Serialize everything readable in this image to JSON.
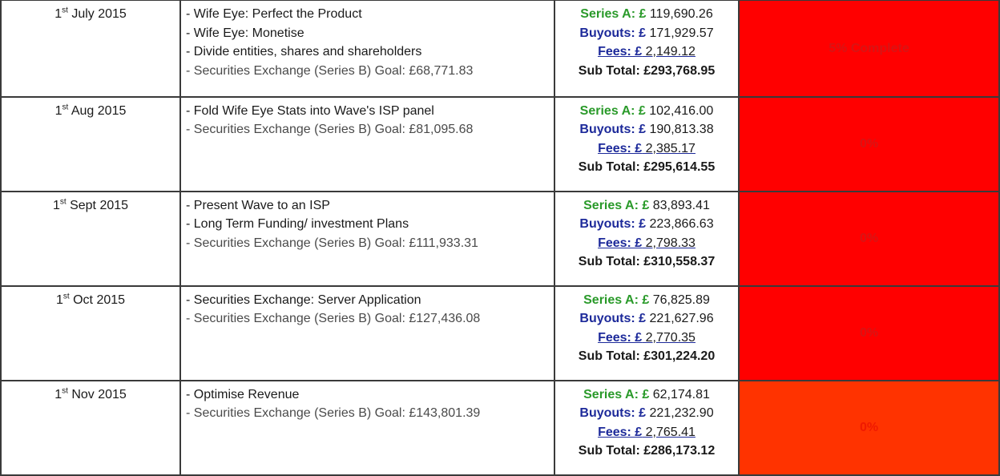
{
  "rows": [
    {
      "date_num": "1",
      "date_sup": "st",
      "date_rest": " July 2015",
      "tasks": [
        "- Wife Eye: Perfect the Product",
        "- Wife Eye: Monetise",
        "- Divide entities, shares and shareholders",
        "- Securities Exchange (Series B) Goal: £68,771.83"
      ],
      "series_label": "Series A: £",
      "series_value": " 119,690.26",
      "buyouts_label": "Buyouts: £",
      "buyouts_value": " 171,929.57",
      "fees_label": "Fees: £",
      "fees_value": " 2,149.12",
      "sub_label": "Sub Total: ",
      "sub_value": "£293,768.95",
      "status": "5% Complete",
      "status_color": "#ff0000"
    },
    {
      "date_num": "1",
      "date_sup": "st",
      "date_rest": " Aug 2015",
      "tasks": [
        "- Fold Wife Eye Stats into Wave's ISP panel",
        "- Securities Exchange (Series B) Goal: £81,095.68"
      ],
      "series_label": "Series A: £",
      "series_value": " 102,416.00",
      "buyouts_label": "Buyouts: £",
      "buyouts_value": " 190,813.38",
      "fees_label": "Fees: £",
      "fees_value": " 2,385.17",
      "sub_label": "Sub Total: ",
      "sub_value": "£295,614.55",
      "status": "0%",
      "status_color": "#ff0000"
    },
    {
      "date_num": "1",
      "date_sup": "st",
      "date_rest": " Sept 2015",
      "tasks": [
        "- Present Wave to an ISP",
        "- Long Term Funding/ investment Plans",
        "- Securities Exchange (Series B) Goal: £111,933.31"
      ],
      "series_label": "Series A: £",
      "series_value": " 83,893.41",
      "buyouts_label": "Buyouts: £",
      "buyouts_value": " 223,866.63",
      "fees_label": "Fees: £",
      "fees_value": " 2,798.33",
      "sub_label": "Sub Total: ",
      "sub_value": "£310,558.37",
      "status": "0%",
      "status_color": "#ff0000"
    },
    {
      "date_num": "1",
      "date_sup": "st",
      "date_rest": " Oct 2015",
      "tasks": [
        "- Securities Exchange: Server Application",
        "- Securities Exchange (Series B) Goal: £127,436.08"
      ],
      "series_label": "Series A: £",
      "series_value": " 76,825.89",
      "buyouts_label": "Buyouts: £",
      "buyouts_value": " 221,627.96",
      "fees_label": "Fees: £",
      "fees_value": " 2,770.35",
      "sub_label": "Sub Total: ",
      "sub_value": "£301,224.20",
      "status": "0%",
      "status_color": "#ff0000"
    },
    {
      "date_num": "1",
      "date_sup": "st",
      "date_rest": " Nov 2015",
      "tasks": [
        "- Optimise Revenue",
        "- Securities Exchange (Series B) Goal: £143,801.39"
      ],
      "series_label": "Series A: £",
      "series_value": " 62,174.81",
      "buyouts_label": "Buyouts: £",
      "buyouts_value": " 221,232.90",
      "fees_label": "Fees: £",
      "fees_value": " 2,765.41",
      "sub_label": "Sub Total: ",
      "sub_value": "£286,173.12",
      "status": "0%",
      "status_color": "#ff3300"
    }
  ]
}
